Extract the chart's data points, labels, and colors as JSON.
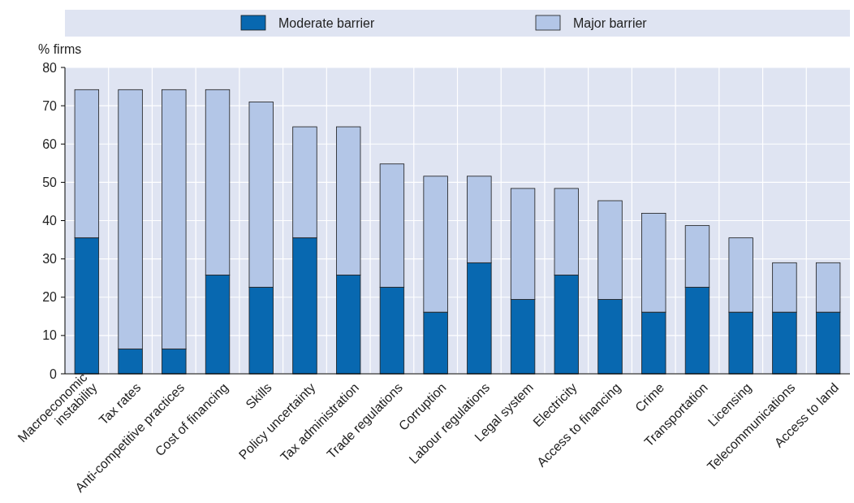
{
  "chart_data": {
    "type": "bar",
    "stacked": true,
    "ylabel": "% firms",
    "categories": [
      "Macroeconomic\ninstability",
      "Tax rates",
      "Anti-competitive practices",
      "Cost of financing",
      "Skills",
      "Policy uncertainty",
      "Tax administration",
      "Trade regulations",
      "Corruption",
      "Labour regulations",
      "Legal system",
      "Electricity",
      "Access to financing",
      "Crime",
      "Transportation",
      "Licensing",
      "Telecommunications",
      "Access to land"
    ],
    "series": [
      {
        "name": "Moderate barrier",
        "color": "#0868b0",
        "values": [
          35.5,
          6.5,
          6.5,
          25.8,
          22.6,
          35.5,
          25.8,
          22.6,
          16.1,
          29.0,
          19.4,
          25.8,
          19.4,
          16.1,
          22.6,
          16.1,
          16.1,
          16.1
        ]
      },
      {
        "name": "Major barrier",
        "color": "#b3c6e7",
        "values": [
          38.7,
          67.7,
          67.7,
          48.4,
          48.4,
          29.0,
          38.7,
          32.2,
          35.5,
          22.6,
          29.0,
          22.6,
          25.8,
          25.8,
          16.1,
          19.4,
          12.9,
          12.9
        ]
      }
    ],
    "ylim": [
      0,
      80
    ],
    "yticks": [
      0,
      10,
      20,
      30,
      40,
      50,
      60,
      70,
      80
    ],
    "grid": true,
    "legend": "top"
  }
}
